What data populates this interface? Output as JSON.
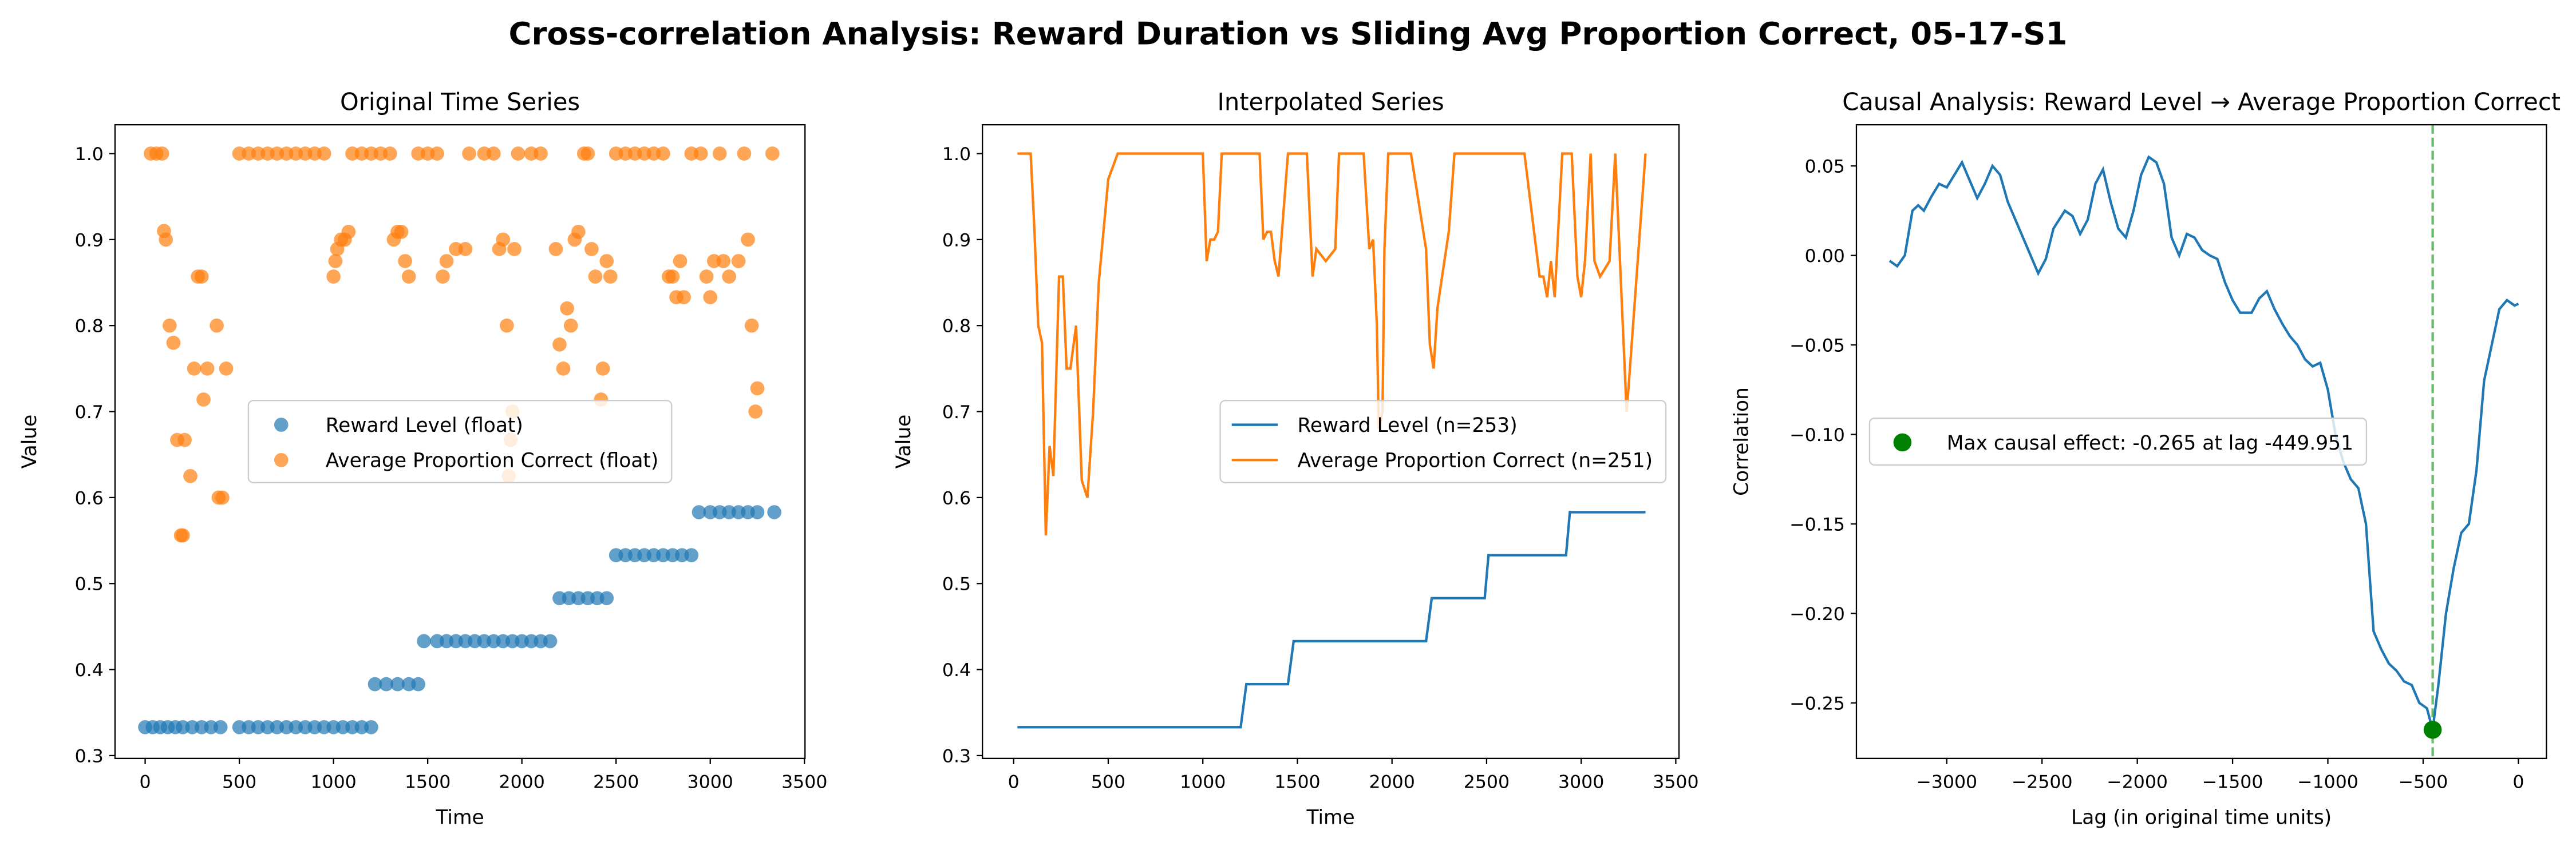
{
  "title": "Cross-correlation Analysis: Reward Duration vs Sliding Avg Proportion Correct, 05-17-S1",
  "chart_data": [
    {
      "type": "scatter",
      "title": "Original Time Series",
      "xlabel": "Time",
      "ylabel": "Value",
      "xlim": [
        -160,
        3503
      ],
      "ylim": [
        0.2967,
        1.0335
      ],
      "xticks": [
        0,
        500,
        1000,
        1500,
        2000,
        2500,
        3000,
        3500
      ],
      "yticks": [
        0.3,
        0.4,
        0.5,
        0.6,
        0.7,
        0.8,
        0.9,
        {
          "value": 1,
          "label": "1.0"
        }
      ],
      "legend_loc": "center",
      "series": [
        {
          "name": "Reward Level (float)",
          "color": "#1f77b4",
          "x": [
            0,
            40,
            80,
            120,
            160,
            200,
            250,
            300,
            350,
            400,
            500,
            550,
            600,
            650,
            700,
            750,
            800,
            850,
            900,
            950,
            1000,
            1050,
            1100,
            1150,
            1200,
            1220,
            1280,
            1340,
            1400,
            1450,
            1480,
            1550,
            1600,
            1650,
            1700,
            1750,
            1800,
            1850,
            1900,
            1950,
            2000,
            2050,
            2100,
            2150,
            2200,
            2250,
            2300,
            2350,
            2400,
            2450,
            2500,
            2550,
            2600,
            2650,
            2700,
            2750,
            2800,
            2850,
            2900,
            2940,
            3000,
            3050,
            3100,
            3150,
            3200,
            3250,
            3340
          ],
          "values": [
            0.333,
            0.333,
            0.333,
            0.333,
            0.333,
            0.333,
            0.333,
            0.333,
            0.333,
            0.333,
            0.333,
            0.333,
            0.333,
            0.333,
            0.333,
            0.333,
            0.333,
            0.333,
            0.333,
            0.333,
            0.333,
            0.333,
            0.333,
            0.333,
            0.333,
            0.383,
            0.383,
            0.383,
            0.383,
            0.383,
            0.433,
            0.433,
            0.433,
            0.433,
            0.433,
            0.433,
            0.433,
            0.433,
            0.433,
            0.433,
            0.433,
            0.433,
            0.433,
            0.433,
            0.483,
            0.483,
            0.483,
            0.483,
            0.483,
            0.483,
            0.533,
            0.533,
            0.533,
            0.533,
            0.533,
            0.533,
            0.533,
            0.533,
            0.533,
            0.583,
            0.583,
            0.583,
            0.583,
            0.583,
            0.583,
            0.583,
            0.583
          ]
        },
        {
          "name": "Average Proportion Correct (float)",
          "color": "#ff7f0e",
          "x": [
            30,
            60,
            90,
            100,
            110,
            130,
            150,
            170,
            190,
            200,
            210,
            240,
            260,
            280,
            300,
            310,
            330,
            380,
            390,
            410,
            430,
            500,
            550,
            600,
            650,
            700,
            750,
            800,
            850,
            900,
            950,
            1000,
            1010,
            1020,
            1040,
            1060,
            1080,
            1100,
            1150,
            1200,
            1250,
            1300,
            1320,
            1340,
            1360,
            1380,
            1400,
            1450,
            1500,
            1550,
            1580,
            1600,
            1650,
            1700,
            1720,
            1800,
            1850,
            1880,
            1900,
            1920,
            1930,
            1940,
            1950,
            1960,
            1980,
            2050,
            2100,
            2180,
            2200,
            2220,
            2240,
            2260,
            2280,
            2300,
            2330,
            2350,
            2370,
            2390,
            2420,
            2430,
            2450,
            2470,
            2500,
            2550,
            2600,
            2650,
            2700,
            2750,
            2780,
            2800,
            2820,
            2840,
            2860,
            2900,
            2950,
            2980,
            3000,
            3020,
            3050,
            3070,
            3100,
            3150,
            3180,
            3200,
            3220,
            3240,
            3250,
            3330
          ],
          "values": [
            1,
            1,
            1,
            0.91,
            0.9,
            0.8,
            0.78,
            0.667,
            0.556,
            0.556,
            0.667,
            0.625,
            0.75,
            0.857,
            0.857,
            0.714,
            0.75,
            0.8,
            0.6,
            0.6,
            0.75,
            1,
            1,
            1,
            1,
            1,
            1,
            1,
            1,
            1,
            1,
            0.857,
            0.875,
            0.889,
            0.9,
            0.9,
            0.909,
            1,
            1,
            1,
            1,
            1,
            0.9,
            0.909,
            0.909,
            0.875,
            0.857,
            1,
            1,
            1,
            0.857,
            0.875,
            0.889,
            0.889,
            1,
            1,
            1,
            0.889,
            0.9,
            0.8,
            0.625,
            0.667,
            0.7,
            0.889,
            1,
            1,
            1,
            0.889,
            0.778,
            0.75,
            0.82,
            0.8,
            0.9,
            0.909,
            1,
            1,
            0.889,
            0.857,
            0.714,
            0.75,
            0.875,
            0.857,
            1,
            1,
            1,
            1,
            1,
            1,
            0.857,
            0.857,
            0.833,
            0.875,
            0.833,
            1,
            1,
            0.857,
            0.833,
            0.875,
            1,
            0.875,
            0.857,
            0.875,
            1,
            0.9,
            0.8,
            0.7,
            0.727,
            1
          ]
        }
      ]
    },
    {
      "type": "line",
      "title": "Interpolated Series",
      "xlabel": "Time",
      "ylabel": "Value",
      "xlim": [
        -165,
        3517
      ],
      "ylim": [
        0.2967,
        1.0335
      ],
      "xticks": [
        0,
        500,
        1000,
        1500,
        2000,
        2500,
        3000,
        3500
      ],
      "yticks": [
        0.3,
        0.4,
        0.5,
        0.6,
        0.7,
        0.8,
        0.9,
        {
          "value": 1,
          "label": "1.0"
        }
      ],
      "legend_loc": "center right",
      "series": [
        {
          "name": "Reward Level (n=253)",
          "color": "#1f77b4",
          "x": [
            20,
            1200,
            1230,
            1450,
            1480,
            2180,
            2210,
            2490,
            2510,
            2920,
            2940,
            3340
          ],
          "values": [
            0.333,
            0.333,
            0.383,
            0.383,
            0.433,
            0.433,
            0.483,
            0.483,
            0.533,
            0.533,
            0.583,
            0.583
          ]
        },
        {
          "name": "Average Proportion Correct (n=251)",
          "color": "#ff7f0e",
          "x": [
            20,
            90,
            110,
            130,
            150,
            170,
            190,
            210,
            240,
            260,
            280,
            300,
            330,
            360,
            390,
            420,
            450,
            500,
            550,
            700,
            1000,
            1020,
            1040,
            1060,
            1080,
            1100,
            1300,
            1320,
            1340,
            1360,
            1380,
            1400,
            1450,
            1550,
            1580,
            1600,
            1650,
            1700,
            1720,
            1800,
            1850,
            1880,
            1900,
            1920,
            1930,
            1950,
            1960,
            1980,
            2100,
            2180,
            2200,
            2220,
            2240,
            2260,
            2300,
            2330,
            2480,
            2500,
            2700,
            2780,
            2800,
            2820,
            2840,
            2860,
            2900,
            2950,
            2980,
            3000,
            3020,
            3050,
            3070,
            3100,
            3150,
            3180,
            3200,
            3220,
            3240,
            3250,
            3340
          ],
          "values": [
            1,
            1,
            0.91,
            0.8,
            0.78,
            0.556,
            0.66,
            0.625,
            0.857,
            0.857,
            0.75,
            0.75,
            0.8,
            0.62,
            0.6,
            0.7,
            0.85,
            0.97,
            1,
            1,
            1,
            0.875,
            0.9,
            0.9,
            0.909,
            1,
            1,
            0.9,
            0.909,
            0.909,
            0.875,
            0.857,
            1,
            1,
            0.857,
            0.889,
            0.875,
            0.889,
            1,
            1,
            1,
            0.889,
            0.9,
            0.8,
            0.68,
            0.7,
            0.889,
            1,
            1,
            0.889,
            0.778,
            0.75,
            0.82,
            0.85,
            0.909,
            1,
            1,
            1,
            1,
            0.857,
            0.857,
            0.833,
            0.875,
            0.833,
            1,
            1,
            0.857,
            0.833,
            0.875,
            1,
            0.875,
            0.857,
            0.875,
            1,
            0.9,
            0.8,
            0.7,
            0.727,
            1
          ]
        }
      ]
    },
    {
      "type": "line",
      "title": "Causal Analysis: Reward Level → Average Proportion Correct",
      "xlabel": "Lag (in original time units)",
      "ylabel": "Correlation",
      "xlim": [
        -3474,
        147
      ],
      "ylim": [
        -0.281,
        0.073
      ],
      "xticks": [
        {
          "value": -3000,
          "label": "−3000"
        },
        {
          "value": -2500,
          "label": "−2500"
        },
        {
          "value": -2000,
          "label": "−2000"
        },
        {
          "value": -1500,
          "label": "−1500"
        },
        {
          "value": -1000,
          "label": "−1000"
        },
        {
          "value": -500,
          "label": "−500"
        },
        0
      ],
      "yticks": [
        {
          "value": -0.25,
          "label": "−0.25"
        },
        {
          "value": -0.2,
          "label": "−0.20"
        },
        {
          "value": -0.15,
          "label": "−0.15"
        },
        {
          "value": -0.1,
          "label": "−0.10"
        },
        {
          "value": -0.05,
          "label": "−0.05"
        },
        {
          "value": 0,
          "label": "0.00"
        },
        0.05
      ],
      "legend_loc": "center left",
      "series": [
        {
          "color": "#1f77b4",
          "x": [
            -3300,
            -3260,
            -3220,
            -3180,
            -3150,
            -3120,
            -3080,
            -3040,
            -3000,
            -2960,
            -2920,
            -2880,
            -2840,
            -2800,
            -2760,
            -2720,
            -2680,
            -2600,
            -2520,
            -2480,
            -2440,
            -2380,
            -2340,
            -2300,
            -2260,
            -2220,
            -2180,
            -2140,
            -2100,
            -2060,
            -2020,
            -1980,
            -1940,
            -1900,
            -1860,
            -1820,
            -1780,
            -1740,
            -1700,
            -1660,
            -1620,
            -1580,
            -1540,
            -1500,
            -1460,
            -1400,
            -1360,
            -1320,
            -1280,
            -1240,
            -1200,
            -1160,
            -1120,
            -1080,
            -1040,
            -1000,
            -960,
            -920,
            -880,
            -840,
            -800,
            -760,
            -720,
            -680,
            -640,
            -600,
            -560,
            -520,
            -480,
            -450,
            -420,
            -380,
            -340,
            -300,
            -260,
            -220,
            -180,
            -140,
            -100,
            -60,
            -20,
            0
          ],
          "values": [
            -0.003,
            -0.006,
            0,
            0.025,
            0.028,
            0.025,
            0.033,
            0.04,
            0.038,
            0.045,
            0.052,
            0.042,
            0.032,
            0.04,
            0.05,
            0.045,
            0.03,
            0.01,
            -0.01,
            -0.002,
            0.015,
            0.025,
            0.022,
            0.012,
            0.02,
            0.04,
            0.048,
            0.03,
            0.015,
            0.01,
            0.025,
            0.045,
            0.055,
            0.052,
            0.04,
            0.01,
            0,
            0.012,
            0.01,
            0.003,
            0,
            -0.002,
            -0.015,
            -0.025,
            -0.032,
            -0.032,
            -0.024,
            -0.02,
            -0.03,
            -0.038,
            -0.045,
            -0.05,
            -0.058,
            -0.062,
            -0.06,
            -0.075,
            -0.1,
            -0.115,
            -0.125,
            -0.13,
            -0.15,
            -0.21,
            -0.22,
            -0.228,
            -0.232,
            -0.238,
            -0.24,
            -0.25,
            -0.253,
            -0.265,
            -0.24,
            -0.2,
            -0.175,
            -0.155,
            -0.15,
            -0.12,
            -0.07,
            -0.05,
            -0.03,
            -0.025,
            -0.028,
            -0.027
          ]
        }
      ],
      "max_effect": {
        "label": "Max causal effect: -0.265 at lag -449.951",
        "lag": -449.951,
        "value": -0.265,
        "color": "green",
        "line_color": "#2ca02c"
      }
    }
  ]
}
